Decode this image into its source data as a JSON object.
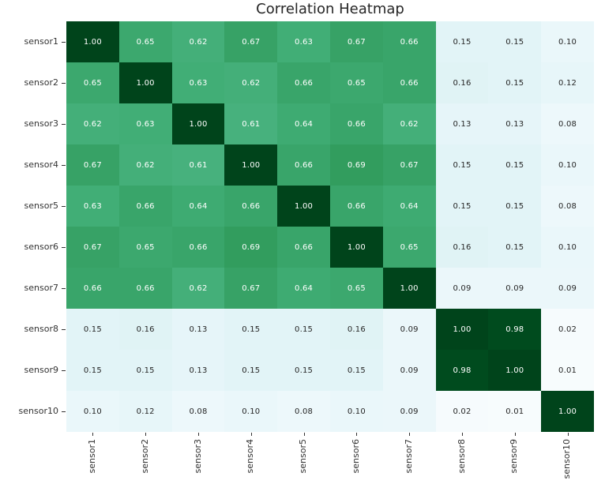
{
  "title": "Correlation Heatmap",
  "chart_data": {
    "type": "heatmap",
    "title": "Correlation Heatmap",
    "row_labels": [
      "sensor1",
      "sensor2",
      "sensor3",
      "sensor4",
      "sensor5",
      "sensor6",
      "sensor7",
      "sensor8",
      "sensor9",
      "sensor10"
    ],
    "col_labels": [
      "sensor1",
      "sensor2",
      "sensor3",
      "sensor4",
      "sensor5",
      "sensor6",
      "sensor7",
      "sensor8",
      "sensor9",
      "sensor10"
    ],
    "matrix": [
      [
        1.0,
        0.65,
        0.62,
        0.67,
        0.63,
        0.67,
        0.66,
        0.15,
        0.15,
        0.1
      ],
      [
        0.65,
        1.0,
        0.63,
        0.62,
        0.66,
        0.65,
        0.66,
        0.16,
        0.15,
        0.12
      ],
      [
        0.62,
        0.63,
        1.0,
        0.61,
        0.64,
        0.66,
        0.62,
        0.13,
        0.13,
        0.08
      ],
      [
        0.67,
        0.62,
        0.61,
        1.0,
        0.66,
        0.69,
        0.67,
        0.15,
        0.15,
        0.1
      ],
      [
        0.63,
        0.66,
        0.64,
        0.66,
        1.0,
        0.66,
        0.64,
        0.15,
        0.15,
        0.08
      ],
      [
        0.67,
        0.65,
        0.66,
        0.69,
        0.66,
        1.0,
        0.65,
        0.16,
        0.15,
        0.1
      ],
      [
        0.66,
        0.66,
        0.62,
        0.67,
        0.64,
        0.65,
        1.0,
        0.09,
        0.09,
        0.09
      ],
      [
        0.15,
        0.16,
        0.13,
        0.15,
        0.15,
        0.16,
        0.09,
        1.0,
        0.98,
        0.02
      ],
      [
        0.15,
        0.15,
        0.13,
        0.15,
        0.15,
        0.15,
        0.09,
        0.98,
        1.0,
        0.01
      ],
      [
        0.1,
        0.12,
        0.08,
        0.1,
        0.08,
        0.1,
        0.09,
        0.02,
        0.01,
        1.0
      ]
    ],
    "value_format": "0.00",
    "vmin": 0.01,
    "vmax": 1.0,
    "colormap": "BuGn",
    "grid": false,
    "legend_position": "none"
  },
  "colors": {
    "colormap_stops": [
      "#f7fcfd",
      "#e5f5f9",
      "#ccece6",
      "#99d8c9",
      "#66c2a4",
      "#41ae76",
      "#238b45",
      "#006d2c",
      "#00441b"
    ],
    "annot_text_light": "#ffffff",
    "annot_text_dark": "#262626",
    "title_color": "#262626",
    "tick_color": "#333333",
    "background": "#ffffff"
  }
}
